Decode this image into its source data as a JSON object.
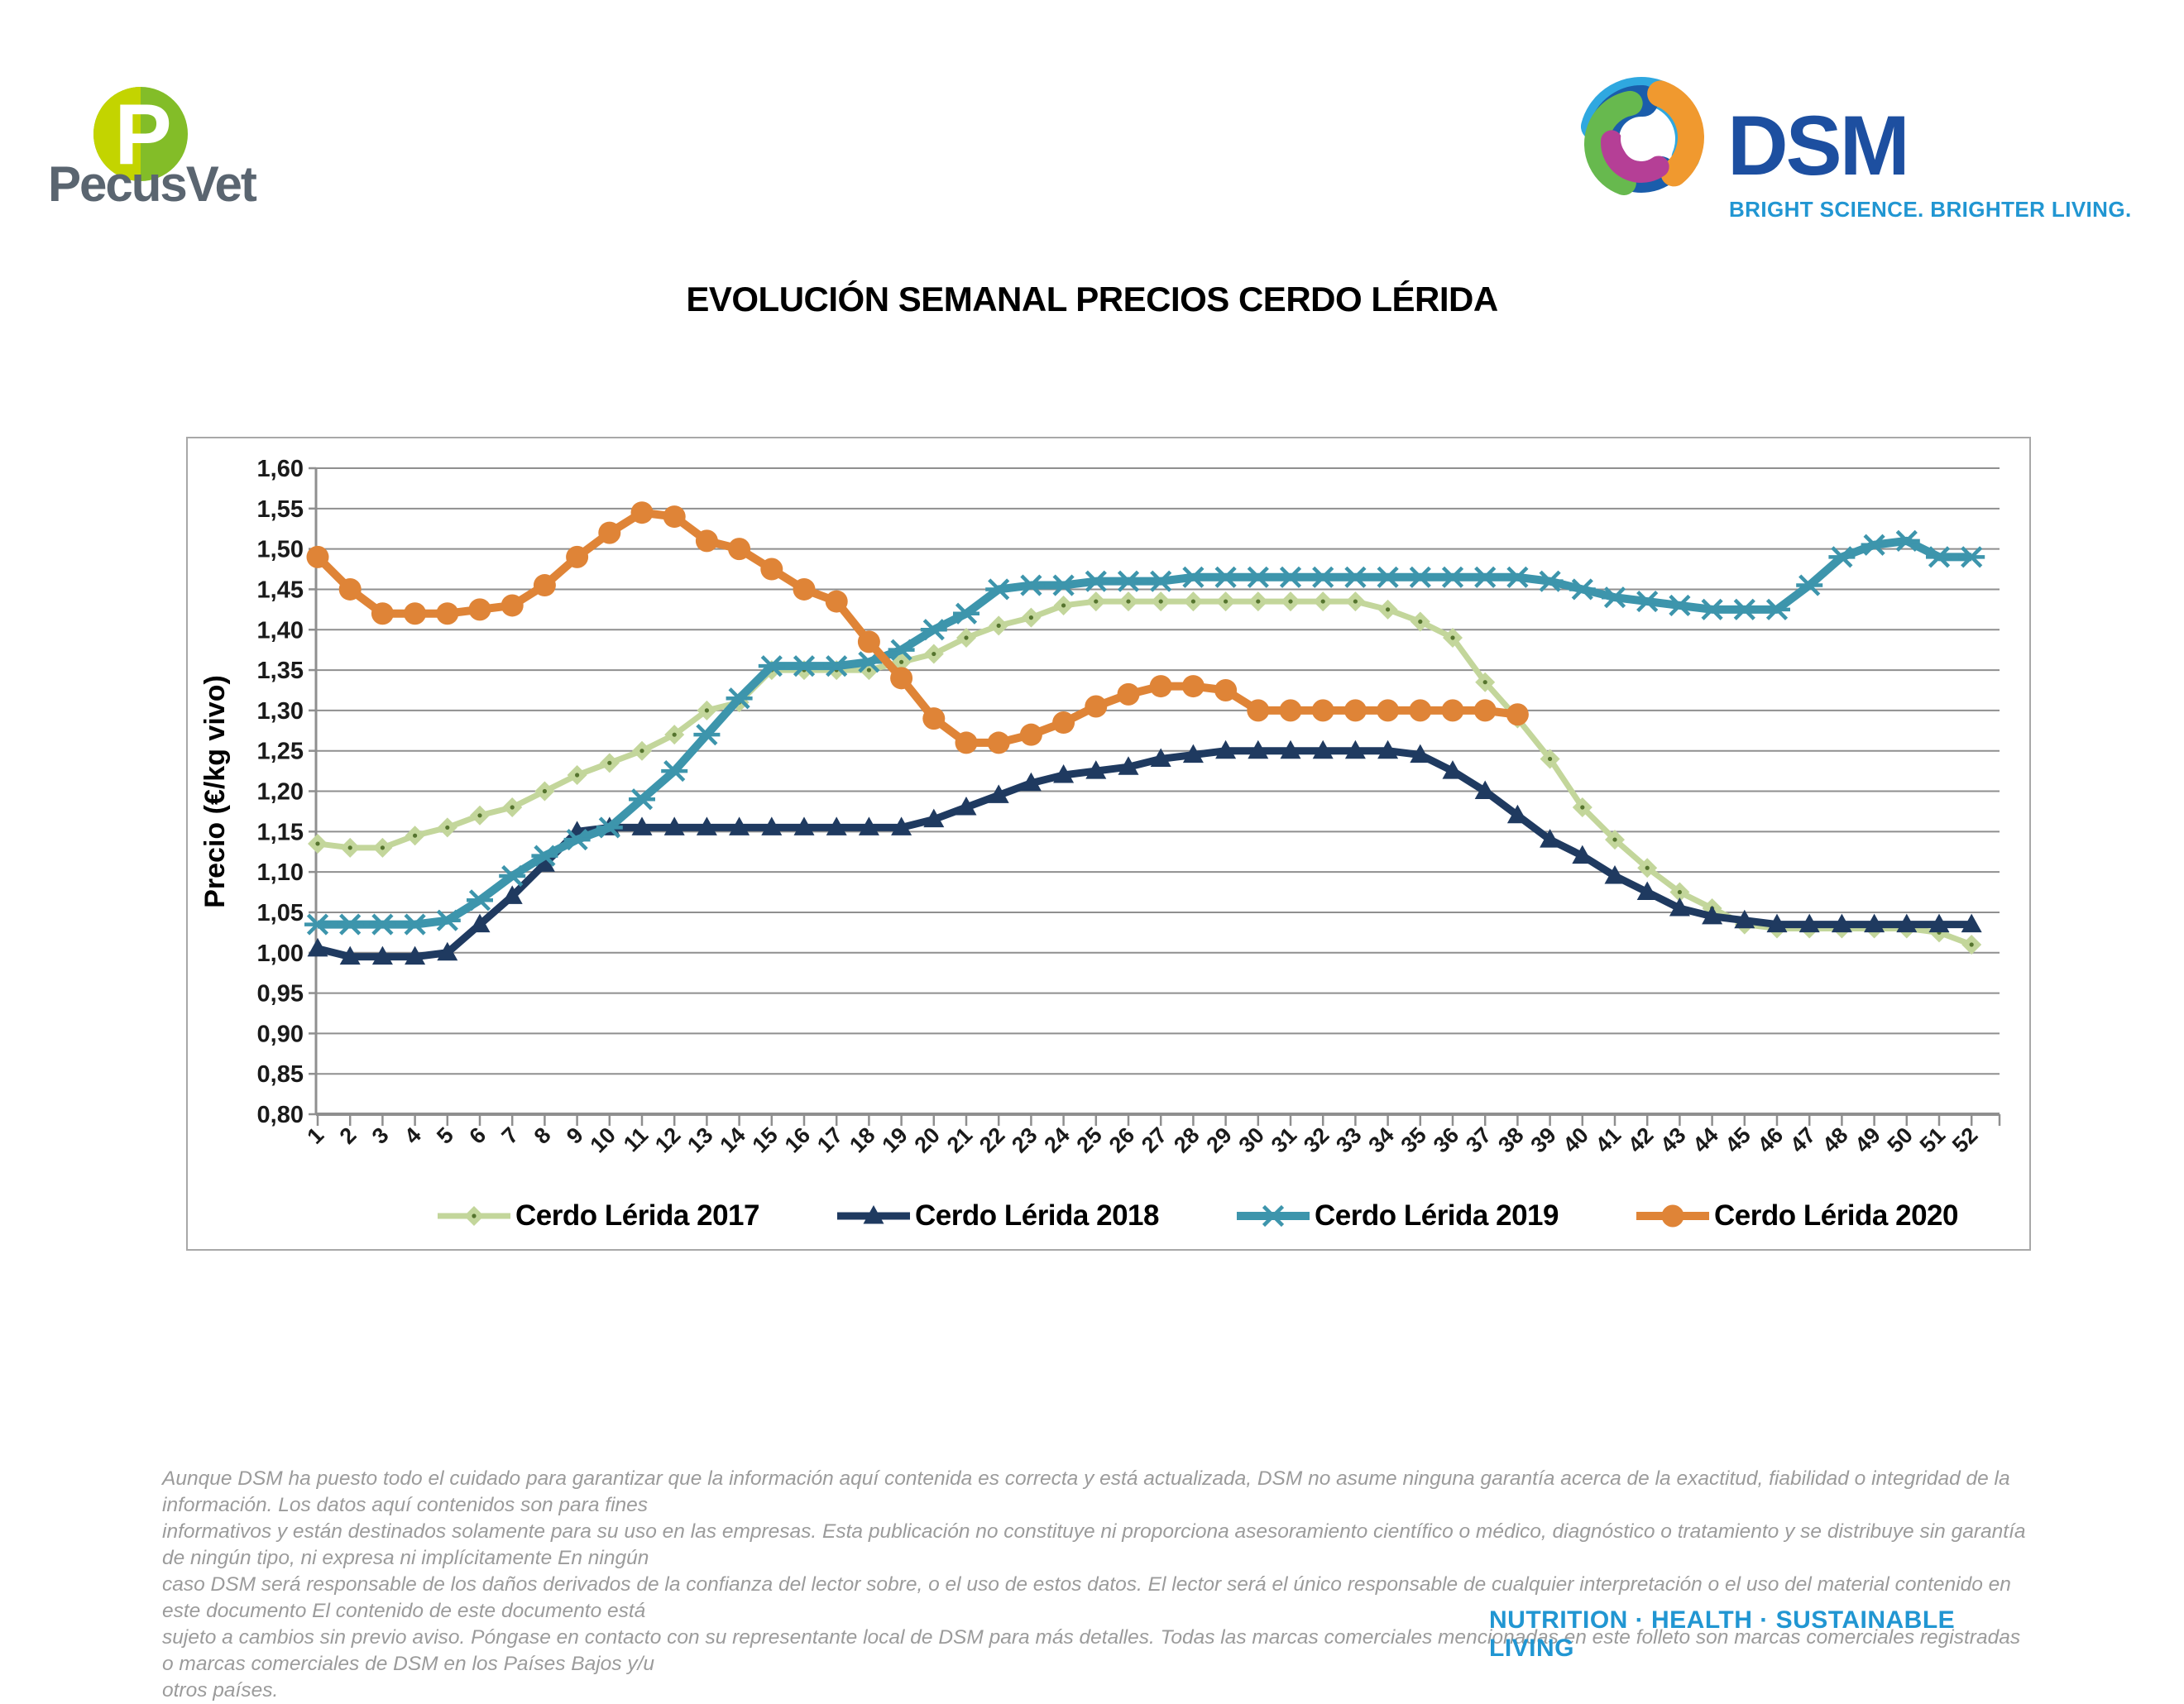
{
  "header": {
    "pecusvet_name": "PecusVet",
    "dsm_name": "DSM",
    "dsm_tagline": "BRIGHT SCIENCE. BRIGHTER LIVING."
  },
  "title": "EVOLUCIÓN SEMANAL PRECIOS CERDO LÉRIDA",
  "chart_data": {
    "type": "line",
    "title": "EVOLUCIÓN SEMANAL PRECIOS CERDO LÉRIDA",
    "xlabel": "",
    "ylabel": "Precio (€/kg vivo)",
    "ylim": [
      0.8,
      1.6
    ],
    "ytick_step": 0.05,
    "grid": true,
    "legend_position": "bottom-inside",
    "x": [
      1,
      2,
      3,
      4,
      5,
      6,
      7,
      8,
      9,
      10,
      11,
      12,
      13,
      14,
      15,
      16,
      17,
      18,
      19,
      20,
      21,
      22,
      23,
      24,
      25,
      26,
      27,
      28,
      29,
      30,
      31,
      32,
      33,
      34,
      35,
      36,
      37,
      38,
      39,
      40,
      41,
      42,
      43,
      44,
      45,
      46,
      47,
      48,
      49,
      50,
      51,
      52
    ],
    "series": [
      {
        "name": "Cerdo Lérida 2017",
        "color": "#c3d69b",
        "marker": "diamond",
        "line_width": 7,
        "values": [
          1.135,
          1.13,
          1.13,
          1.145,
          1.155,
          1.17,
          1.18,
          1.2,
          1.22,
          1.235,
          1.25,
          1.27,
          1.3,
          1.31,
          1.35,
          1.35,
          1.35,
          1.35,
          1.36,
          1.37,
          1.39,
          1.405,
          1.415,
          1.43,
          1.435,
          1.435,
          1.435,
          1.435,
          1.435,
          1.435,
          1.435,
          1.435,
          1.435,
          1.425,
          1.41,
          1.39,
          1.335,
          1.29,
          1.24,
          1.18,
          1.14,
          1.105,
          1.075,
          1.055,
          1.035,
          1.03,
          1.03,
          1.03,
          1.03,
          1.03,
          1.025,
          1.01
        ]
      },
      {
        "name": "Cerdo Lérida 2018",
        "color": "#1f3a60",
        "marker": "triangle",
        "line_width": 9,
        "values": [
          1.005,
          0.995,
          0.995,
          0.995,
          1.0,
          1.035,
          1.07,
          1.11,
          1.15,
          1.155,
          1.155,
          1.155,
          1.155,
          1.155,
          1.155,
          1.155,
          1.155,
          1.155,
          1.155,
          1.165,
          1.18,
          1.195,
          1.21,
          1.22,
          1.225,
          1.23,
          1.24,
          1.245,
          1.25,
          1.25,
          1.25,
          1.25,
          1.25,
          1.25,
          1.245,
          1.225,
          1.2,
          1.17,
          1.14,
          1.12,
          1.095,
          1.075,
          1.055,
          1.045,
          1.04,
          1.035,
          1.035,
          1.035,
          1.035,
          1.035,
          1.035,
          1.035
        ]
      },
      {
        "name": "Cerdo Lérida 2019",
        "color": "#3d95ac",
        "marker": "asterisk",
        "line_width": 10,
        "values": [
          1.035,
          1.035,
          1.035,
          1.035,
          1.04,
          1.065,
          1.095,
          1.12,
          1.14,
          1.155,
          1.19,
          1.225,
          1.27,
          1.315,
          1.355,
          1.355,
          1.355,
          1.36,
          1.375,
          1.4,
          1.42,
          1.45,
          1.455,
          1.455,
          1.46,
          1.46,
          1.46,
          1.465,
          1.465,
          1.465,
          1.465,
          1.465,
          1.465,
          1.465,
          1.465,
          1.465,
          1.465,
          1.465,
          1.46,
          1.45,
          1.44,
          1.435,
          1.43,
          1.425,
          1.425,
          1.425,
          1.455,
          1.49,
          1.505,
          1.51,
          1.49,
          1.49
        ]
      },
      {
        "name": "Cerdo Lérida 2020",
        "color": "#df8437",
        "marker": "circle",
        "line_width": 10,
        "values": [
          1.49,
          1.45,
          1.42,
          1.42,
          1.42,
          1.425,
          1.43,
          1.455,
          1.49,
          1.52,
          1.545,
          1.54,
          1.51,
          1.5,
          1.475,
          1.45,
          1.435,
          1.385,
          1.34,
          1.29,
          1.26,
          1.26,
          1.27,
          1.285,
          1.305,
          1.32,
          1.33,
          1.33,
          1.325,
          1.3,
          1.3,
          1.3,
          1.3,
          1.3,
          1.3,
          1.3,
          1.3,
          1.295
        ]
      }
    ]
  },
  "footer": {
    "disclaimer_lines": [
      "Aunque DSM ha puesto todo el cuidado para garantizar que la información aquí contenida es correcta y está actualizada, DSM no asume ninguna garantía acerca de la exactitud, fiabilidad o integridad de la información. Los datos aquí contenidos son para fines",
      "informativos y están destinados solamente para su uso en las empresas. Esta publicación no constituye ni proporciona asesoramiento científico o médico, diagnóstico o tratamiento y se distribuye sin garantía de ningún tipo, ni expresa ni implícitamente En ningún",
      "caso DSM será responsable de los daños derivados de la confianza del lector sobre, o el uso de estos datos. El lector será el único responsable de cualquier interpretación o el uso del material contenido en este documento El contenido de este documento está",
      "sujeto a cambios sin previo aviso. Póngase en contacto con su representante local de DSM para más detalles. Todas las marcas comerciales mencionadas en este folleto son marcas comerciales registradas o marcas comerciales de DSM en los Países Bajos y/u",
      "otros países."
    ],
    "brand_tagline": "NUTRITION · HEALTH · SUSTAINABLE LIVING"
  }
}
